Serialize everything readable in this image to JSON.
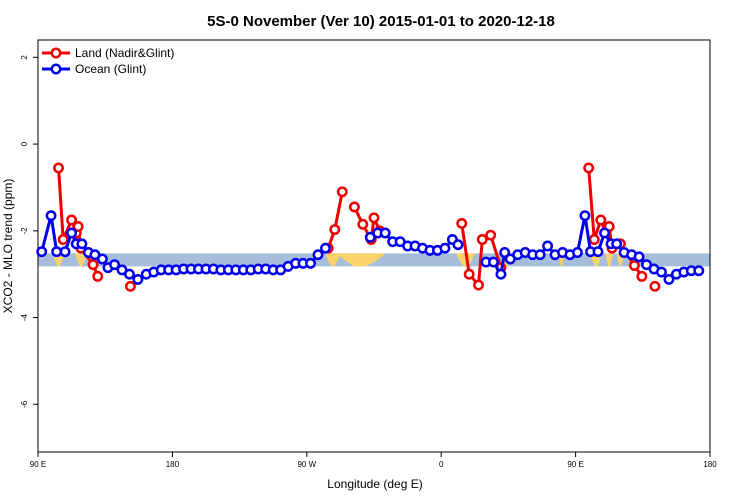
{
  "chart_data": {
    "type": "line",
    "title": "5S-0 November (Ver 10)   2015-01-01 to 2020-12-18",
    "xlabel": "Longitude (deg E)",
    "ylabel": "XCO2 - MLO trend (ppm)",
    "xlim": [
      90,
      450
    ],
    "ylim": [
      -7.1,
      2.4
    ],
    "x_ticks": [
      {
        "value": 90,
        "label": "90 E"
      },
      {
        "value": 162,
        "label": "180"
      },
      {
        "value": 234,
        "label": "90 W"
      },
      {
        "value": 306,
        "label": "0"
      },
      {
        "value": 378,
        "label": "90 E"
      },
      {
        "value": 450,
        "label": "180"
      }
    ],
    "y_ticks": [
      {
        "value": 2,
        "label": "2"
      },
      {
        "value": 0,
        "label": "0"
      },
      {
        "value": -2,
        "label": "-2"
      },
      {
        "value": -4,
        "label": "-4"
      },
      {
        "value": -6,
        "label": "-6"
      }
    ],
    "legend_position": "top-left",
    "reference_band": {
      "y_min": -2.82,
      "y_max": -2.52,
      "color": "#a6bddb"
    },
    "land_mask_y_top": -2.52,
    "land_mask_y_bottom": -2.82,
    "land_mask": [
      {
        "x_start": 98,
        "x_end": 104
      },
      {
        "x_start": 110,
        "x_end": 116
      },
      {
        "x_start": 244,
        "x_end": 252
      },
      {
        "x_start": 252,
        "x_end": 270
      },
      {
        "x_start": 250,
        "x_end": 276
      },
      {
        "x_start": 314,
        "x_end": 324
      },
      {
        "x_start": 339,
        "x_end": 343
      },
      {
        "x_start": 369,
        "x_end": 372
      },
      {
        "x_start": 386,
        "x_end": 392
      },
      {
        "x_start": 394,
        "x_end": 398
      },
      {
        "x_start": 400,
        "x_end": 404
      }
    ],
    "land_mask_color": "#fad46b",
    "series": [
      {
        "name": "Land (Nadir&Glint)",
        "color": "#ee0000",
        "segments": [
          [
            [
              101,
              -0.55
            ],
            [
              103.5,
              -2.2
            ],
            [
              108,
              -1.75
            ],
            [
              110.5,
              -2.05
            ],
            [
              111.5,
              -1.9
            ],
            [
              113,
              -2.4
            ],
            [
              119.5,
              -2.78
            ],
            [
              122,
              -3.05
            ]
          ],
          [
            [
              139.5,
              -3.28
            ]
          ],
          [
            [
              245.5,
              -2.4
            ],
            [
              249,
              -1.97
            ],
            [
              253,
              -1.1
            ]
          ],
          [
            [
              259.5,
              -1.45
            ],
            [
              264,
              -1.85
            ],
            [
              268.5,
              -2.2
            ],
            [
              270,
              -1.7
            ],
            [
              273,
              -2.0
            ]
          ],
          [
            [
              317,
              -1.83
            ],
            [
              321,
              -3.0
            ],
            [
              326,
              -3.25
            ],
            [
              328,
              -2.2
            ],
            [
              332.5,
              -2.1
            ],
            [
              338,
              -2.85
            ]
          ],
          [
            [
              385,
              -0.55
            ],
            [
              388,
              -2.2
            ],
            [
              391.5,
              -1.75
            ],
            [
              394,
              -2.05
            ],
            [
              396,
              -1.9
            ],
            [
              397.5,
              -2.4
            ],
            [
              402,
              -2.3
            ],
            [
              409.5,
              -2.8
            ],
            [
              413.5,
              -3.05
            ]
          ],
          [
            [
              420.5,
              -3.28
            ]
          ]
        ]
      },
      {
        "name": "Ocean (Glint)",
        "color": "#0000ee",
        "segments": [
          [
            [
              92,
              -2.48
            ],
            [
              97,
              -1.65
            ],
            [
              100,
              -2.48
            ],
            [
              104.5,
              -2.48
            ],
            [
              108,
              -2.05
            ],
            [
              110.5,
              -2.3
            ],
            [
              113.5,
              -2.3
            ],
            [
              117,
              -2.5
            ],
            [
              120.5,
              -2.55
            ],
            [
              124.5,
              -2.65
            ],
            [
              127.5,
              -2.85
            ],
            [
              131,
              -2.78
            ],
            [
              135,
              -2.9
            ],
            [
              139,
              -3.0
            ],
            [
              143.5,
              -3.12
            ],
            [
              148,
              -3.0
            ],
            [
              152,
              -2.95
            ],
            [
              156,
              -2.9
            ],
            [
              160,
              -2.9
            ],
            [
              164,
              -2.9
            ],
            [
              168,
              -2.88
            ],
            [
              172,
              -2.88
            ],
            [
              176,
              -2.88
            ],
            [
              180,
              -2.88
            ],
            [
              184,
              -2.88
            ],
            [
              188,
              -2.9
            ],
            [
              192,
              -2.9
            ],
            [
              196,
              -2.9
            ],
            [
              200,
              -2.9
            ],
            [
              204,
              -2.9
            ],
            [
              208,
              -2.88
            ],
            [
              212,
              -2.88
            ],
            [
              216,
              -2.9
            ],
            [
              220,
              -2.9
            ],
            [
              224,
              -2.82
            ],
            [
              228,
              -2.75
            ],
            [
              232,
              -2.75
            ],
            [
              236,
              -2.75
            ],
            [
              240,
              -2.55
            ],
            [
              244,
              -2.4
            ]
          ],
          [
            [
              268,
              -2.15
            ],
            [
              272,
              -2.05
            ],
            [
              276,
              -2.05
            ],
            [
              280,
              -2.25
            ],
            [
              284,
              -2.25
            ],
            [
              288,
              -2.35
            ],
            [
              292,
              -2.35
            ],
            [
              296,
              -2.4
            ],
            [
              300,
              -2.45
            ],
            [
              304,
              -2.45
            ],
            [
              308,
              -2.4
            ],
            [
              312,
              -2.2
            ],
            [
              315,
              -2.32
            ]
          ],
          [
            [
              330,
              -2.72
            ],
            [
              334,
              -2.72
            ],
            [
              338,
              -3.0
            ],
            [
              340,
              -2.5
            ],
            [
              343,
              -2.65
            ],
            [
              347,
              -2.55
            ],
            [
              351,
              -2.5
            ],
            [
              355,
              -2.55
            ],
            [
              359,
              -2.55
            ],
            [
              363,
              -2.35
            ],
            [
              367,
              -2.55
            ],
            [
              371,
              -2.5
            ],
            [
              375,
              -2.55
            ],
            [
              379,
              -2.5
            ],
            [
              383,
              -1.65
            ],
            [
              386,
              -2.48
            ],
            [
              390,
              -2.48
            ],
            [
              393.5,
              -2.05
            ],
            [
              397,
              -2.3
            ],
            [
              400,
              -2.3
            ],
            [
              404,
              -2.5
            ],
            [
              408,
              -2.55
            ],
            [
              412,
              -2.6
            ],
            [
              416,
              -2.78
            ],
            [
              420,
              -2.88
            ],
            [
              424,
              -2.95
            ],
            [
              428,
              -3.12
            ],
            [
              432,
              -3.0
            ],
            [
              436,
              -2.95
            ],
            [
              440,
              -2.92
            ],
            [
              444,
              -2.92
            ]
          ]
        ]
      }
    ]
  }
}
